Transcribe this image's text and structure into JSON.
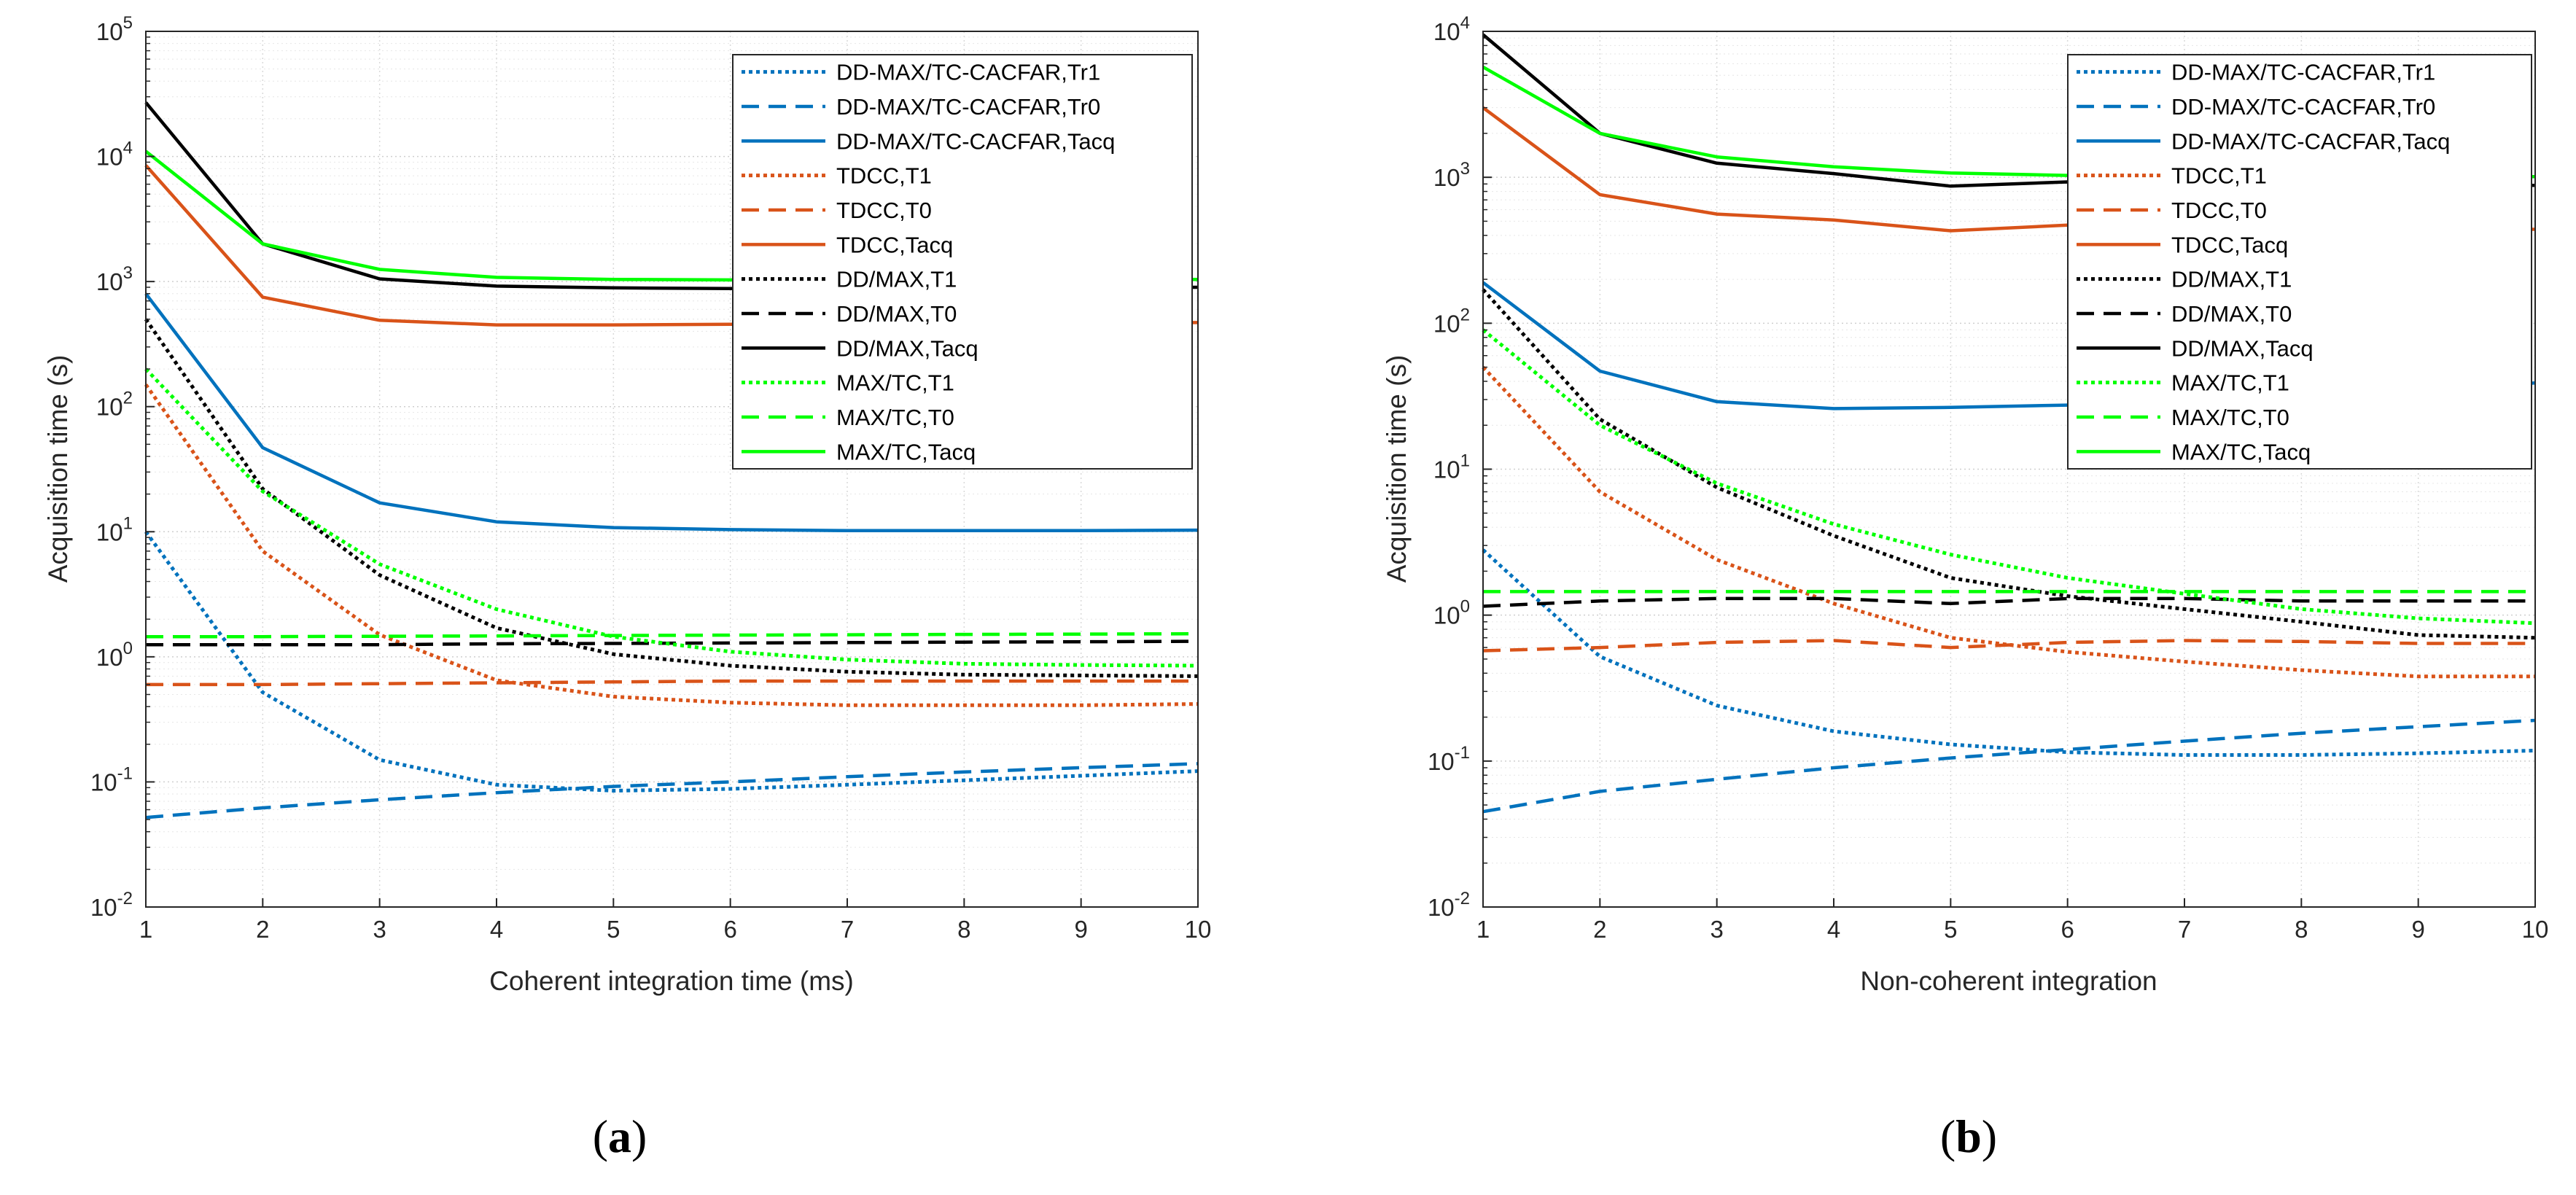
{
  "colors": {
    "blue": "#0072BD",
    "orange": "#D95319",
    "black": "#000000",
    "green": "#00FF00"
  },
  "chart_data": [
    {
      "type": "line",
      "panel_label": "a",
      "xlabel": "Coherent integration time (ms)",
      "ylabel": "Acquisition time (s)",
      "xlim": [
        1,
        10
      ],
      "ylim": [
        0.01,
        100000
      ],
      "yscale": "log",
      "grid": true,
      "legend_position": "top-right",
      "x_ticks": [
        "1",
        "2",
        "3",
        "4",
        "5",
        "6",
        "7",
        "8",
        "9",
        "10"
      ],
      "x": [
        1,
        2,
        3,
        4,
        5,
        6,
        7,
        8,
        9,
        10
      ],
      "series": [
        {
          "name": "DD-MAX/TC-CACFAR,Tr1",
          "color": "#0072BD",
          "style": "dotted",
          "values": [
            10,
            0.52,
            0.15,
            0.095,
            0.085,
            0.088,
            0.095,
            0.103,
            0.112,
            0.122
          ]
        },
        {
          "name": "DD-MAX/TC-CACFAR,Tr0",
          "color": "#0072BD",
          "style": "dashed",
          "values": [
            0.052,
            0.062,
            0.072,
            0.082,
            0.092,
            0.1,
            0.11,
            0.12,
            0.13,
            0.14
          ]
        },
        {
          "name": "DD-MAX/TC-CACFAR,Tacq",
          "color": "#0072BD",
          "style": "solid",
          "values": [
            800,
            47,
            17,
            12,
            10.8,
            10.4,
            10.2,
            10.2,
            10.2,
            10.3
          ]
        },
        {
          "name": "TDCC,T1",
          "color": "#D95319",
          "style": "dotted",
          "values": [
            150,
            7,
            1.5,
            0.65,
            0.48,
            0.43,
            0.41,
            0.41,
            0.41,
            0.42
          ]
        },
        {
          "name": "TDCC,T0",
          "color": "#D95319",
          "style": "dashed",
          "values": [
            0.6,
            0.6,
            0.61,
            0.62,
            0.63,
            0.64,
            0.64,
            0.64,
            0.64,
            0.64
          ]
        },
        {
          "name": "TDCC,Tacq",
          "color": "#D95319",
          "style": "solid",
          "values": [
            8500,
            750,
            490,
            450,
            450,
            455,
            455,
            460,
            465,
            470
          ]
        },
        {
          "name": "DD/MAX,T1",
          "color": "#000000",
          "style": "dotted",
          "values": [
            500,
            22,
            4.5,
            1.7,
            1.05,
            0.85,
            0.76,
            0.72,
            0.71,
            0.7
          ]
        },
        {
          "name": "DD/MAX,T0",
          "color": "#000000",
          "style": "dashed",
          "values": [
            1.25,
            1.25,
            1.25,
            1.27,
            1.28,
            1.29,
            1.3,
            1.31,
            1.32,
            1.33
          ]
        },
        {
          "name": "DD/MAX,Tacq",
          "color": "#000000",
          "style": "solid",
          "values": [
            27000,
            2000,
            1050,
            920,
            890,
            880,
            880,
            880,
            890,
            900
          ]
        },
        {
          "name": "MAX/TC,T1",
          "color": "#00FF00",
          "style": "dotted",
          "values": [
            200,
            21,
            5.5,
            2.4,
            1.45,
            1.1,
            0.95,
            0.88,
            0.86,
            0.85
          ]
        },
        {
          "name": "MAX/TC,T0",
          "color": "#00FF00",
          "style": "dashed",
          "values": [
            1.45,
            1.45,
            1.46,
            1.47,
            1.48,
            1.49,
            1.5,
            1.51,
            1.52,
            1.53
          ]
        },
        {
          "name": "MAX/TC,Tacq",
          "color": "#00FF00",
          "style": "solid",
          "values": [
            11000,
            2000,
            1250,
            1080,
            1040,
            1030,
            1030,
            1030,
            1035,
            1040
          ]
        }
      ]
    },
    {
      "type": "line",
      "panel_label": "b",
      "xlabel": "Non-coherent integration",
      "ylabel": "Acquisition time (s)",
      "xlim": [
        1,
        10
      ],
      "ylim": [
        0.01,
        10000
      ],
      "yscale": "log",
      "grid": true,
      "legend_position": "top-right",
      "x_ticks": [
        "1",
        "2",
        "3",
        "4",
        "5",
        "6",
        "7",
        "8",
        "9",
        "10"
      ],
      "x": [
        1,
        2,
        3,
        4,
        5,
        6,
        7,
        8,
        9,
        10
      ],
      "series": [
        {
          "name": "DD-MAX/TC-CACFAR,Tr1",
          "color": "#0072BD",
          "style": "dotted",
          "values": [
            2.8,
            0.52,
            0.24,
            0.16,
            0.13,
            0.115,
            0.11,
            0.11,
            0.113,
            0.118
          ]
        },
        {
          "name": "DD-MAX/TC-CACFAR,Tr0",
          "color": "#0072BD",
          "style": "dashed",
          "values": [
            0.045,
            0.062,
            0.075,
            0.09,
            0.105,
            0.12,
            0.137,
            0.155,
            0.172,
            0.19
          ]
        },
        {
          "name": "DD-MAX/TC-CACFAR,Tacq",
          "color": "#0072BD",
          "style": "solid",
          "values": [
            190,
            47,
            29,
            26,
            26.5,
            27.5,
            29,
            31.5,
            35,
            39
          ]
        },
        {
          "name": "TDCC,T1",
          "color": "#D95319",
          "style": "dotted",
          "values": [
            50,
            7,
            2.4,
            1.2,
            0.7,
            0.56,
            0.48,
            0.42,
            0.38,
            0.38
          ]
        },
        {
          "name": "TDCC,T0",
          "color": "#D95319",
          "style": "dashed",
          "values": [
            0.57,
            0.6,
            0.65,
            0.67,
            0.6,
            0.65,
            0.67,
            0.66,
            0.64,
            0.64
          ]
        },
        {
          "name": "TDCC,Tacq",
          "color": "#D95319",
          "style": "solid",
          "values": [
            3000,
            760,
            560,
            510,
            430,
            470,
            450,
            440,
            440,
            440
          ]
        },
        {
          "name": "DD/MAX,T1",
          "color": "#000000",
          "style": "dotted",
          "values": [
            170,
            22,
            7.5,
            3.5,
            1.8,
            1.35,
            1.1,
            0.9,
            0.73,
            0.7
          ]
        },
        {
          "name": "DD/MAX,T0",
          "color": "#000000",
          "style": "dashed",
          "values": [
            1.15,
            1.25,
            1.3,
            1.3,
            1.2,
            1.3,
            1.3,
            1.25,
            1.25,
            1.25
          ]
        },
        {
          "name": "DD/MAX,Tacq",
          "color": "#000000",
          "style": "solid",
          "values": [
            9500,
            2000,
            1250,
            1060,
            870,
            930,
            910,
            890,
            880,
            880
          ]
        },
        {
          "name": "MAX/TC,T1",
          "color": "#00FF00",
          "style": "dotted",
          "values": [
            90,
            20,
            8,
            4.2,
            2.6,
            1.8,
            1.4,
            1.1,
            0.95,
            0.88
          ]
        },
        {
          "name": "MAX/TC,T0",
          "color": "#00FF00",
          "style": "dashed",
          "values": [
            1.45,
            1.45,
            1.45,
            1.45,
            1.45,
            1.45,
            1.45,
            1.45,
            1.45,
            1.45
          ]
        },
        {
          "name": "MAX/TC,Tacq",
          "color": "#00FF00",
          "style": "solid",
          "values": [
            5700,
            2000,
            1380,
            1180,
            1070,
            1030,
            1010,
            1010,
            1010,
            1010
          ]
        }
      ]
    }
  ]
}
